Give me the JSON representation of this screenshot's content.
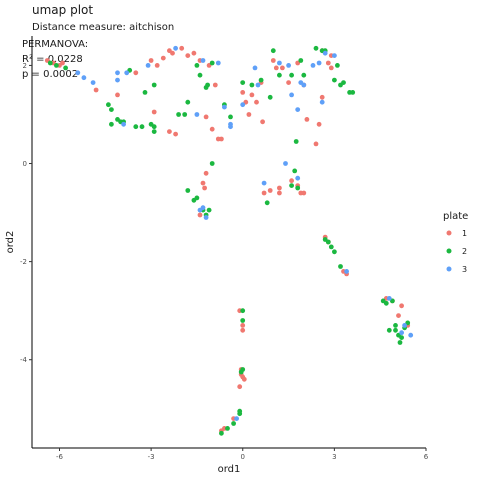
{
  "chart_data": {
    "type": "scatter",
    "title": "umap plot",
    "subtitle_lines": [
      "Distance measure:  aitchison",
      "PERMANOVA:",
      "R² = 0.0228",
      "p = 0.0002"
    ],
    "xlabel": "ord1",
    "ylabel": "ord2",
    "xlim": [
      -6.9,
      6.0
    ],
    "ylim": [
      -5.8,
      2.6
    ],
    "x_ticks": [
      -6,
      -3,
      0,
      3,
      6
    ],
    "x_tick_labels": [
      "-6",
      "-3",
      "0",
      "3",
      "6"
    ],
    "y_ticks": [
      -4,
      -2,
      0,
      2
    ],
    "y_tick_labels": [
      "-4",
      "-2",
      "0",
      "2"
    ],
    "grid": false,
    "legend": {
      "title": "plate",
      "position": "right",
      "entries": [
        {
          "label": "1",
          "color": "#f07870"
        },
        {
          "label": "2",
          "color": "#1bb840"
        },
        {
          "label": "3",
          "color": "#5fa0f8"
        }
      ]
    },
    "series": [
      {
        "name": "1",
        "color": "#f07870",
        "points": [
          [
            -6.4,
            2.1
          ],
          [
            -6.2,
            2.05
          ],
          [
            -6.0,
            2.0
          ],
          [
            -5.9,
            2.05
          ],
          [
            -4.8,
            1.5
          ],
          [
            -4.1,
            1.4
          ],
          [
            -3.5,
            1.85
          ],
          [
            -3.0,
            2.1
          ],
          [
            -2.8,
            2.0
          ],
          [
            -2.6,
            2.15
          ],
          [
            -2.4,
            2.3
          ],
          [
            -2.3,
            2.25
          ],
          [
            -2.0,
            2.35
          ],
          [
            -1.8,
            2.2
          ],
          [
            -1.6,
            2.25
          ],
          [
            -1.4,
            2.1
          ],
          [
            -1.1,
            2.0
          ],
          [
            -0.9,
            1.6
          ],
          [
            -2.9,
            1.05
          ],
          [
            -2.4,
            0.65
          ],
          [
            -2.2,
            0.6
          ],
          [
            -1.2,
            0.95
          ],
          [
            -1.0,
            0.7
          ],
          [
            -0.8,
            0.5
          ],
          [
            -0.7,
            0.5
          ],
          [
            0.0,
            1.45
          ],
          [
            0.1,
            1.25
          ],
          [
            0.2,
            1.0
          ],
          [
            0.3,
            1.4
          ],
          [
            0.45,
            1.25
          ],
          [
            0.6,
            1.65
          ],
          [
            0.65,
            0.85
          ],
          [
            1.0,
            2.1
          ],
          [
            1.1,
            1.95
          ],
          [
            1.3,
            1.95
          ],
          [
            1.5,
            1.65
          ],
          [
            1.8,
            2.05
          ],
          [
            2.0,
            1.6
          ],
          [
            2.1,
            0.9
          ],
          [
            2.4,
            0.4
          ],
          [
            2.5,
            0.8
          ],
          [
            2.6,
            1.35
          ],
          [
            2.8,
            2.05
          ],
          [
            2.9,
            2.2
          ],
          [
            2.9,
            1.95
          ],
          [
            2.6,
            2.3
          ],
          [
            -1.3,
            -0.4
          ],
          [
            -1.25,
            -0.5
          ],
          [
            -1.2,
            -0.2
          ],
          [
            -1.4,
            -1.05
          ],
          [
            0.7,
            -0.6
          ],
          [
            0.9,
            -0.55
          ],
          [
            1.2,
            -0.6
          ],
          [
            1.6,
            -0.35
          ],
          [
            1.9,
            -0.6
          ],
          [
            2.0,
            -0.6
          ],
          [
            2.7,
            -1.5
          ],
          [
            2.8,
            -1.6
          ],
          [
            3.3,
            -2.2
          ],
          [
            3.4,
            -2.25
          ],
          [
            4.7,
            -2.75
          ],
          [
            4.9,
            -2.8
          ],
          [
            5.1,
            -3.1
          ],
          [
            5.2,
            -2.9
          ],
          [
            5.4,
            -3.3
          ],
          [
            -0.1,
            -3.0
          ],
          [
            0.0,
            -3.3
          ],
          [
            0.0,
            -3.4
          ],
          [
            -0.05,
            -4.3
          ],
          [
            0.0,
            -4.35
          ],
          [
            0.05,
            -4.4
          ],
          [
            -0.1,
            -4.55
          ],
          [
            -0.05,
            -4.2
          ],
          [
            -0.3,
            -5.2
          ],
          [
            -0.6,
            -5.4
          ],
          [
            -0.7,
            -5.45
          ],
          [
            1.2,
            -0.5
          ],
          [
            1.8,
            -0.45
          ]
        ]
      },
      {
        "name": "2",
        "color": "#1bb840",
        "points": [
          [
            -6.3,
            2.05
          ],
          [
            -6.1,
            2.0
          ],
          [
            -5.8,
            1.95
          ],
          [
            -4.4,
            1.2
          ],
          [
            -4.3,
            1.1
          ],
          [
            -4.3,
            0.8
          ],
          [
            -4.1,
            0.9
          ],
          [
            -4.0,
            0.85
          ],
          [
            -3.9,
            0.85
          ],
          [
            -3.7,
            1.9
          ],
          [
            -3.5,
            0.75
          ],
          [
            -3.3,
            0.75
          ],
          [
            -3.2,
            1.45
          ],
          [
            -3.0,
            0.8
          ],
          [
            -2.9,
            0.75
          ],
          [
            -2.9,
            0.65
          ],
          [
            -2.9,
            1.6
          ],
          [
            -2.1,
            1.0
          ],
          [
            -1.9,
            1.0
          ],
          [
            -1.8,
            1.25
          ],
          [
            -1.5,
            2.0
          ],
          [
            -1.4,
            1.8
          ],
          [
            -1.2,
            1.55
          ],
          [
            -1.15,
            1.6
          ],
          [
            -1.0,
            2.05
          ],
          [
            -0.6,
            1.2
          ],
          [
            -0.4,
            0.95
          ],
          [
            0.0,
            1.65
          ],
          [
            0.3,
            1.6
          ],
          [
            0.6,
            1.7
          ],
          [
            0.9,
            1.35
          ],
          [
            1.0,
            2.3
          ],
          [
            1.2,
            1.8
          ],
          [
            1.6,
            1.8
          ],
          [
            1.75,
            0.45
          ],
          [
            1.9,
            2.1
          ],
          [
            2.0,
            1.8
          ],
          [
            2.4,
            2.35
          ],
          [
            2.6,
            2.3
          ],
          [
            2.7,
            2.3
          ],
          [
            3.0,
            1.7
          ],
          [
            3.1,
            2.0
          ],
          [
            3.2,
            1.6
          ],
          [
            3.3,
            1.65
          ],
          [
            3.5,
            1.45
          ],
          [
            3.6,
            1.45
          ],
          [
            -1.8,
            -0.55
          ],
          [
            -1.6,
            -0.75
          ],
          [
            -1.5,
            -0.7
          ],
          [
            -1.3,
            -0.95
          ],
          [
            -1.1,
            -0.95
          ],
          [
            -1.0,
            0.0
          ],
          [
            -1.2,
            -1.05
          ],
          [
            0.8,
            -0.8
          ],
          [
            1.6,
            -0.45
          ],
          [
            1.7,
            -0.15
          ],
          [
            1.8,
            -0.5
          ],
          [
            2.7,
            -1.55
          ],
          [
            2.8,
            -1.6
          ],
          [
            2.9,
            -1.7
          ],
          [
            3.0,
            -1.8
          ],
          [
            3.2,
            -2.1
          ],
          [
            4.6,
            -2.8
          ],
          [
            4.7,
            -2.85
          ],
          [
            4.9,
            -2.8
          ],
          [
            5.0,
            -3.3
          ],
          [
            5.0,
            -3.4
          ],
          [
            5.1,
            -3.5
          ],
          [
            5.15,
            -3.65
          ],
          [
            5.2,
            -3.55
          ],
          [
            4.8,
            -3.4
          ],
          [
            5.3,
            -3.35
          ],
          [
            5.4,
            -3.25
          ],
          [
            0.0,
            -3.0
          ],
          [
            0.0,
            -3.2
          ],
          [
            0.0,
            -4.2
          ],
          [
            -0.05,
            -4.25
          ],
          [
            -0.1,
            -5.05
          ],
          [
            -0.1,
            -5.1
          ],
          [
            -0.3,
            -5.3
          ],
          [
            -0.5,
            -5.4
          ],
          [
            -0.7,
            -5.5
          ]
        ]
      },
      {
        "name": "3",
        "color": "#5fa0f8",
        "points": [
          [
            -5.4,
            1.85
          ],
          [
            -5.2,
            1.75
          ],
          [
            -4.9,
            1.65
          ],
          [
            -4.1,
            1.7
          ],
          [
            -4.1,
            1.85
          ],
          [
            -3.9,
            0.8
          ],
          [
            -3.8,
            1.85
          ],
          [
            -3.1,
            2.0
          ],
          [
            -2.2,
            2.35
          ],
          [
            -1.5,
            1.0
          ],
          [
            -1.3,
            2.1
          ],
          [
            -0.8,
            2.05
          ],
          [
            -0.6,
            1.15
          ],
          [
            -0.4,
            0.8
          ],
          [
            -0.4,
            0.75
          ],
          [
            0.0,
            1.2
          ],
          [
            0.4,
            1.95
          ],
          [
            0.5,
            1.6
          ],
          [
            1.2,
            2.05
          ],
          [
            1.5,
            2.0
          ],
          [
            1.6,
            1.4
          ],
          [
            1.8,
            1.1
          ],
          [
            1.9,
            1.65
          ],
          [
            2.0,
            1.6
          ],
          [
            2.3,
            2.0
          ],
          [
            2.5,
            2.05
          ],
          [
            2.6,
            1.25
          ],
          [
            2.7,
            2.25
          ],
          [
            3.0,
            2.2
          ],
          [
            -1.3,
            -0.9
          ],
          [
            -1.2,
            -1.1
          ],
          [
            -1.4,
            -0.95
          ],
          [
            0.7,
            -0.4
          ],
          [
            1.4,
            0.0
          ],
          [
            1.8,
            -0.3
          ],
          [
            3.4,
            -2.2
          ],
          [
            4.8,
            -2.75
          ],
          [
            5.2,
            -3.45
          ],
          [
            5.3,
            -3.3
          ],
          [
            5.5,
            -3.5
          ],
          [
            -0.2,
            -5.2
          ]
        ]
      }
    ]
  }
}
